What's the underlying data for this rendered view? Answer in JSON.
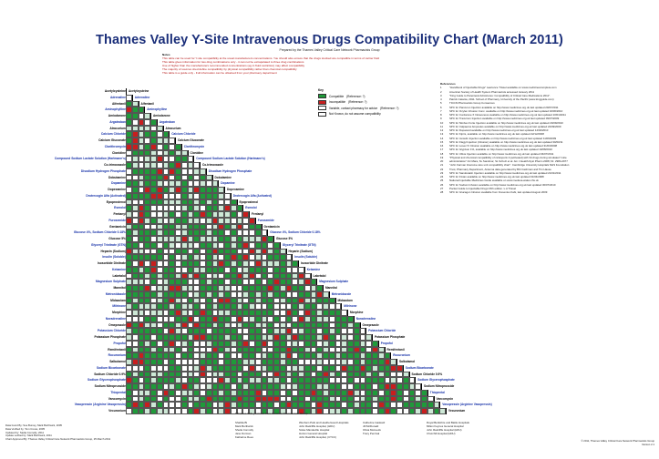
{
  "title": "Thames Valley Y-Site Intravenous Drugs Compatibility Chart  (March 2011)",
  "subtitle": "Prepared by the Thames Valley Critical Care Network Pharmacists Group",
  "notes": {
    "heading": "Notes",
    "lines": [
      "This table can be used for Y-site compatibility at the usual manufacturers concentrations. You should also ensure that the drugs stocked are compatible in terms of carrier fluid",
      "This table gives information for two drug combinations only - it can not be extrapolated to three drug combinations",
      "Use of higher than the manufacturers recommended concentrations (eg in fluid restriction) may affect compatibility",
      "The majority of sources cited define compatibility by physical compatibility rather than chemical compatibility",
      "This table is a guide only - Full information can be obtained from your pharmacy department"
    ]
  },
  "key": {
    "heading": "Key",
    "items": [
      {
        "label": "Compatible",
        "ref": "(Reference: ?)",
        "color": "#1f9a3a"
      },
      {
        "label": "Incompatible",
        "ref": "(Reference: ?)",
        "color": "#c81e1e"
      },
      {
        "label": "Variable, contact pharmacy for advice",
        "ref": "(Reference: ?)",
        "color": "#ffffff"
      },
      {
        "label": "Not Known, do not assume compatibility",
        "ref": "",
        "color": "#ffffff"
      }
    ]
  },
  "references": {
    "heading": "References",
    "items": [
      "\"Handbook of Injectable Drugs\" Lawrence Trissel available on www.medicinescomplete.com",
      "American Society of Health System Pharmacists accessed January 2011",
      "\"King Guide to Parenteral Admixtures: Compatibility of Critical Care Medications 2011\".",
      "Patrick Catania, 2011. School of Pharmacy, University of the Pacific (www.kingguide.com)",
      "TICCN Pharmacists Group Consensus",
      "SPC for Pancuron Injection available on http://www.medicines.org.uk last updated 20/07/2011",
      "SPC for Oxyfen Infusion Conc. available on http://www.medicines.org.uk last updated 02/06/2010",
      "SPC for Cordarone X Intravenous available on http://www.medicines.org.uk last updated 10/01/2011",
      "SPC for Tracurium Injection available on http://www.medicines.org.uk last updated 09/07/2009",
      "SPC for Nimbex Forte Injection available on http://www.medicines.org.uk last updated 24/09/2010",
      "SPC for Calpaeros Ampoules available on http://www.medicines.org.uk last updated 22/09/2009",
      "SPC for Dopacard available on http://www.medicines.org.uk last updated 14/04/2010",
      "SPC for Kipris, available on http://www.medicines.org.uk last updated 22/12/2008",
      "SPC for Ionsulin Injection available on http://www.medicines.org.uk last updated 11/09/2009",
      "SPC for Flagyl Injection (Infusion) available on http://www.medicines.org.uk last updated 30/03/11",
      "SPC for Losec IV Infusion available on http://www.medicines.org.uk last updated 31/03/2008",
      "SPC for Glypivon 1%, available on http://www.medicines.org.uk last updated 10/08/2010",
      "SPC for Ultiva Injection available on http://www.medicines.org.uk last updated 04/07/2011",
      "\"Physical and chemical compatibility of ciclosporin A (activated) with 34 drugs during simulated Y-site",
      "administration\" AC Mara, SL Sandmar, SL Schulz et al. Am J Health-Syst Pharm 2008; 61: 2984-2977",
      "\"John Farman Intensive care unit compatibility chart\". Cambridge University Hospitals NHS Foundation",
      "Trust, Pharmacy Department, Antenna data generated by Brit Cashman and Tim Hause",
      "SPC for Sandostatin Injection available on http://www.medicines.org.uk last updated 21/01/2011",
      "SPC for Fixtan available on http://www.medicines.org.uk last updated 01/04/2008",
      "National Injectable Medicines Guide available on www.medusa.wales.nhs.uk",
      "SPC for Sodium Infusion available on http://www.medicines.org.uk last updated 30/07/2010",
      "Pocket Guide to Injectable Drugs 15th edition. L.A Trissel",
      "SPC for Glucagon Infusion available from Fresenius Kabi, last updated August 2009"
    ]
  },
  "drugs": [
    {
      "name": "Acetylcysteine",
      "blue": false
    },
    {
      "name": "Adrenaline",
      "blue": true
    },
    {
      "name": "Alfentanil",
      "blue": false
    },
    {
      "name": "Aminophylline",
      "blue": true
    },
    {
      "name": "Amiodarone",
      "blue": false
    },
    {
      "name": "Argatroban",
      "blue": true
    },
    {
      "name": "Atracurium",
      "blue": false
    },
    {
      "name": "Calcium Chloride",
      "blue": true
    },
    {
      "name": "Calcium Gluconate",
      "blue": false
    },
    {
      "name": "Clarithromycin",
      "blue": true
    },
    {
      "name": "Clonidine",
      "blue": false
    },
    {
      "name": "Compound Sodium Lactate Solution (Hartmann's)",
      "blue": true
    },
    {
      "name": "Co-trimoxazole",
      "blue": false
    },
    {
      "name": "Disodium Hydrogen Phosphate",
      "blue": true
    },
    {
      "name": "Dobutamine",
      "blue": false
    },
    {
      "name": "Dopamine",
      "blue": true
    },
    {
      "name": "Dopexamine",
      "blue": false
    },
    {
      "name": "Drotrecogin Alfa (Activated)",
      "blue": true
    },
    {
      "name": "Epoprostenol",
      "blue": false
    },
    {
      "name": "Esmolol",
      "blue": true
    },
    {
      "name": "Fentanyl",
      "blue": false
    },
    {
      "name": "Furosemide",
      "blue": true
    },
    {
      "name": "Gentamicin",
      "blue": false
    },
    {
      "name": "Glucose 4%, Sodium Chloride 0.18%",
      "blue": true
    },
    {
      "name": "Glucose 5%",
      "blue": false
    },
    {
      "name": "Glyceryl Trinitrate (GTN)",
      "blue": true
    },
    {
      "name": "Heparin (Sodium)",
      "blue": false
    },
    {
      "name": "Insulin (Soluble)",
      "blue": true
    },
    {
      "name": "Isosorbide Dinitrate",
      "blue": false
    },
    {
      "name": "Ketamine",
      "blue": true
    },
    {
      "name": "Labetalol",
      "blue": false
    },
    {
      "name": "Magnesium Sulphate",
      "blue": true
    },
    {
      "name": "Mannitol",
      "blue": false
    },
    {
      "name": "Metronidazole",
      "blue": true
    },
    {
      "name": "Midazolam",
      "blue": false
    },
    {
      "name": "Milrinone",
      "blue": true
    },
    {
      "name": "Morphine",
      "blue": false
    },
    {
      "name": "Noradrenaline",
      "blue": true
    },
    {
      "name": "Omeprazole",
      "blue": false
    },
    {
      "name": "Potassium Chloride",
      "blue": true
    },
    {
      "name": "Potassium Phosphate",
      "blue": false
    },
    {
      "name": "Propofol",
      "blue": true
    },
    {
      "name": "Remifentanil",
      "blue": false
    },
    {
      "name": "Rocuronium",
      "blue": true
    },
    {
      "name": "Salbutamol",
      "blue": false
    },
    {
      "name": "Sodium Bicarbonate",
      "blue": true
    },
    {
      "name": "Sodium Chloride 0.9%",
      "blue": false
    },
    {
      "name": "Sodium Glycerophosphate",
      "blue": true
    },
    {
      "name": "Sodium Nitroprusside",
      "blue": false
    },
    {
      "name": "Thiopental",
      "blue": true
    },
    {
      "name": "Vancomycin",
      "blue": false
    },
    {
      "name": "Vasopressin (Arginine Vasopressin)",
      "blue": true
    },
    {
      "name": "Vecuronium",
      "blue": false
    }
  ],
  "footer": {
    "network": "*Thames Valley Critical Care Network Pharmacists' Group",
    "left": [
      "Data found By: Sue Bumey, Mark Borthwick, 2005",
      "Data Verified by: Tom Crews, 2005",
      "Updated by: Sadia Connolly, 2011",
      "Update verified by: Mark Borthwick, 2011",
      "Chart Approved By: Thames Valley Critical Care Network Pharmacists Group, 25 March 2011"
    ],
    "columns": [
      [
        "Shabila Bi",
        "Mark Borthwick",
        "Sheila Connolly",
        "Jane Dorman",
        "Katharine Rees"
      ],
      [
        "Wexham Park and Heatherwood Hospitals",
        "John Radcliffe Hospital, (HDU)",
        "Stoke Mandeville Hospital",
        "Horton General Hospital",
        "John Radcliffe Hospital, (CTCC)"
      ],
      [
        "Catherine Gaskard",
        "Jill McDonald",
        "Olivia Mozeeds",
        "Tracy Percival"
      ],
      [
        "Royal Berkshire and Battle Hospitals",
        "Milton Keynes General Hospital",
        "John Radcliffe Hospital (HDU)",
        "Churchill Hospital (HDU)"
      ]
    ],
    "copyright": "© 2011, Thames Valley Critical Care Network Pharmacists Group",
    "version": "Version 2.1"
  }
}
